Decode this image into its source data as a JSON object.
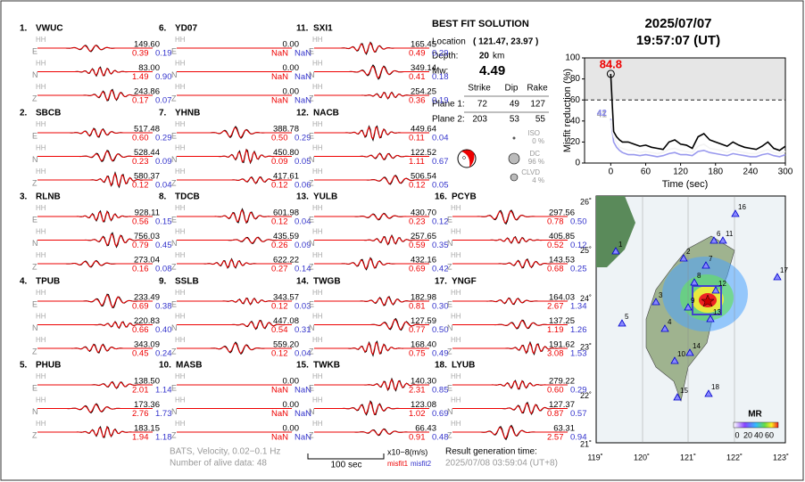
{
  "time": {
    "date": "2025/07/07",
    "clock": "19:57:07  (UT)"
  },
  "solution": {
    "title": "BEST FIT SOLUTION",
    "location_label": "Location",
    "location": "( 121.47, 23.97 )",
    "depth_label": "Depth:",
    "depth": "20",
    "depth_unit": "km",
    "mw_label": "Mw:",
    "mw": "4.49",
    "headers": [
      "Strike",
      "Dip",
      "Rake"
    ],
    "planes": [
      {
        "label": "Plane 1:",
        "values": [
          "72",
          "49",
          "127"
        ]
      },
      {
        "label": "Plane 2:",
        "values": [
          "203",
          "53",
          "55"
        ]
      }
    ],
    "components": [
      {
        "name": "ISO",
        "percent": "0 %"
      },
      {
        "name": "DC",
        "percent": "96 %"
      },
      {
        "name": "CLVD",
        "percent": "4 %"
      }
    ]
  },
  "stations": [
    {
      "number": "1.",
      "name": "VWUC",
      "channel": "HH",
      "traces": [
        {
          "comp": "E",
          "amp": "149.60",
          "misfit1": "0.39",
          "misfit2": "0.19"
        },
        {
          "comp": "N",
          "amp": "83.00",
          "misfit1": "1.49",
          "misfit2": "0.90"
        },
        {
          "comp": "Z",
          "amp": "243.86",
          "misfit1": "0.17",
          "misfit2": "0.07"
        }
      ]
    },
    {
      "number": "2.",
      "name": "SBCB",
      "channel": "HH",
      "traces": [
        {
          "comp": "E",
          "amp": "517.48",
          "misfit1": "0.60",
          "misfit2": "0.29"
        },
        {
          "comp": "N",
          "amp": "528.44",
          "misfit1": "0.23",
          "misfit2": "0.09"
        },
        {
          "comp": "Z",
          "amp": "580.37",
          "misfit1": "0.12",
          "misfit2": "0.04"
        }
      ]
    },
    {
      "number": "3.",
      "name": "RLNB",
      "channel": "HH",
      "traces": [
        {
          "comp": "E",
          "amp": "928.11",
          "misfit1": "0.56",
          "misfit2": "0.15"
        },
        {
          "comp": "N",
          "amp": "756.03",
          "misfit1": "0.79",
          "misfit2": "0.45"
        },
        {
          "comp": "Z",
          "amp": "273.04",
          "misfit1": "0.16",
          "misfit2": "0.08"
        }
      ]
    },
    {
      "number": "4.",
      "name": "TPUB",
      "channel": "HH",
      "traces": [
        {
          "comp": "E",
          "amp": "233.49",
          "misfit1": "0.69",
          "misfit2": "0.38"
        },
        {
          "comp": "N",
          "amp": "220.83",
          "misfit1": "0.66",
          "misfit2": "0.40"
        },
        {
          "comp": "Z",
          "amp": "343.09",
          "misfit1": "0.45",
          "misfit2": "0.24"
        }
      ]
    },
    {
      "number": "5.",
      "name": "PHUB",
      "channel": "HH",
      "traces": [
        {
          "comp": "E",
          "amp": "138.50",
          "misfit1": "2.01",
          "misfit2": "1.14"
        },
        {
          "comp": "N",
          "amp": "173.36",
          "misfit1": "2.76",
          "misfit2": "1.73"
        },
        {
          "comp": "Z",
          "amp": "183.15",
          "misfit1": "1.94",
          "misfit2": "1.18"
        }
      ]
    },
    {
      "number": "6.",
      "name": "YD07",
      "channel": "HH",
      "traces": [
        {
          "comp": "E",
          "amp": "0.00",
          "misfit1": "NaN",
          "misfit2": "NaN"
        },
        {
          "comp": "N",
          "amp": "0.00",
          "misfit1": "NaN",
          "misfit2": "NaN"
        },
        {
          "comp": "Z",
          "amp": "0.00",
          "misfit1": "NaN",
          "misfit2": "NaN"
        }
      ]
    },
    {
      "number": "7.",
      "name": "YHNB",
      "channel": "HH",
      "traces": [
        {
          "comp": "E",
          "amp": "388.78",
          "misfit1": "0.50",
          "misfit2": "0.29"
        },
        {
          "comp": "N",
          "amp": "450.80",
          "misfit1": "0.09",
          "misfit2": "0.05"
        },
        {
          "comp": "Z",
          "amp": "417.61",
          "misfit1": "0.12",
          "misfit2": "0.06"
        }
      ]
    },
    {
      "number": "8.",
      "name": "TDCB",
      "channel": "HH",
      "traces": [
        {
          "comp": "E",
          "amp": "601.98",
          "misfit1": "0.12",
          "misfit2": "0.04"
        },
        {
          "comp": "N",
          "amp": "435.59",
          "misfit1": "0.26",
          "misfit2": "0.09"
        },
        {
          "comp": "Z",
          "amp": "622.22",
          "misfit1": "0.27",
          "misfit2": "0.14"
        }
      ]
    },
    {
      "number": "9.",
      "name": "SSLB",
      "channel": "HH",
      "traces": [
        {
          "comp": "E",
          "amp": "343.57",
          "misfit1": "0.12",
          "misfit2": "0.03"
        },
        {
          "comp": "N",
          "amp": "447.08",
          "misfit1": "0.54",
          "misfit2": "0.31"
        },
        {
          "comp": "Z",
          "amp": "559.20",
          "misfit1": "0.12",
          "misfit2": "0.04"
        }
      ]
    },
    {
      "number": "10.",
      "name": "MASB",
      "channel": "HH",
      "traces": [
        {
          "comp": "E",
          "amp": "0.00",
          "misfit1": "NaN",
          "misfit2": "NaN"
        },
        {
          "comp": "N",
          "amp": "0.00",
          "misfit1": "NaN",
          "misfit2": "NaN"
        },
        {
          "comp": "Z",
          "amp": "0.00",
          "misfit1": "NaN",
          "misfit2": "NaN"
        }
      ]
    },
    {
      "number": "11.",
      "name": "SXI1",
      "channel": "HH",
      "traces": [
        {
          "comp": "E",
          "amp": "165.45",
          "misfit1": "0.49",
          "misfit2": "0.29"
        },
        {
          "comp": "N",
          "amp": "349.14",
          "misfit1": "0.41",
          "misfit2": "0.18"
        },
        {
          "comp": "Z",
          "amp": "254.25",
          "misfit1": "0.36",
          "misfit2": "0.19"
        }
      ]
    },
    {
      "number": "12.",
      "name": "NACB",
      "channel": "HH",
      "traces": [
        {
          "comp": "E",
          "amp": "449.64",
          "misfit1": "0.11",
          "misfit2": "0.04"
        },
        {
          "comp": "N",
          "amp": "122.52",
          "misfit1": "1.11",
          "misfit2": "0.67"
        },
        {
          "comp": "Z",
          "amp": "506.54",
          "misfit1": "0.12",
          "misfit2": "0.05"
        }
      ]
    },
    {
      "number": "13.",
      "name": "YULB",
      "channel": "HH",
      "traces": [
        {
          "comp": "E",
          "amp": "430.70",
          "misfit1": "0.23",
          "misfit2": "0.12"
        },
        {
          "comp": "N",
          "amp": "257.65",
          "misfit1": "0.59",
          "misfit2": "0.35"
        },
        {
          "comp": "Z",
          "amp": "432.16",
          "misfit1": "0.69",
          "misfit2": "0.42"
        }
      ]
    },
    {
      "number": "14.",
      "name": "TWGB",
      "channel": "HH",
      "traces": [
        {
          "comp": "E",
          "amp": "182.98",
          "misfit1": "0.81",
          "misfit2": "0.30"
        },
        {
          "comp": "N",
          "amp": "127.59",
          "misfit1": "0.77",
          "misfit2": "0.50"
        },
        {
          "comp": "Z",
          "amp": "168.40",
          "misfit1": "0.75",
          "misfit2": "0.49"
        }
      ]
    },
    {
      "number": "15.",
      "name": "TWKB",
      "channel": "HH",
      "traces": [
        {
          "comp": "E",
          "amp": "140.30",
          "misfit1": "2.31",
          "misfit2": "0.85"
        },
        {
          "comp": "N",
          "amp": "123.08",
          "misfit1": "1.02",
          "misfit2": "0.69"
        },
        {
          "comp": "Z",
          "amp": "66.43",
          "misfit1": "0.91",
          "misfit2": "0.48"
        }
      ]
    },
    {
      "number": "16.",
      "name": "PCYB",
      "channel": "HH",
      "traces": [
        {
          "comp": "E",
          "amp": "297.56",
          "misfit1": "0.78",
          "misfit2": "0.50"
        },
        {
          "comp": "N",
          "amp": "405.85",
          "misfit1": "0.52",
          "misfit2": "0.12"
        },
        {
          "comp": "Z",
          "amp": "143.53",
          "misfit1": "0.68",
          "misfit2": "0.25"
        }
      ]
    },
    {
      "number": "17.",
      "name": "YNGF",
      "channel": "HH",
      "traces": [
        {
          "comp": "E",
          "amp": "164.03",
          "misfit1": "2.67",
          "misfit2": "1.34"
        },
        {
          "comp": "N",
          "amp": "137.25",
          "misfit1": "1.19",
          "misfit2": "1.26"
        },
        {
          "comp": "Z",
          "amp": "191.62",
          "misfit1": "3.08",
          "misfit2": "1.53"
        }
      ]
    },
    {
      "number": "18.",
      "name": "LYUB",
      "channel": "HH",
      "traces": [
        {
          "comp": "E",
          "amp": "279.22",
          "misfit1": "0.60",
          "misfit2": "0.29"
        },
        {
          "comp": "N",
          "amp": "127.37",
          "misfit1": "0.87",
          "misfit2": "0.57"
        },
        {
          "comp": "Z",
          "amp": "63.31",
          "misfit1": "2.57",
          "misfit2": "0.94"
        }
      ]
    }
  ],
  "footer": {
    "filter": "BATS, Velocity, 0.02−0.1 Hz",
    "alive": "Number of alive data: 48",
    "scale": "100 sec",
    "units": "x10−8(m/s)",
    "misfit1": "misfit1",
    "misfit2": "misfit2",
    "result_label": "Result generation time:",
    "result_time": "2025/07/08 03:59:04 (UT+8)"
  },
  "map": {
    "lat_ticks": [
      "26˚",
      "25˚",
      "24˚",
      "23˚",
      "22˚",
      "21˚"
    ],
    "lon_ticks": [
      "119˚",
      "120˚",
      "121˚",
      "122˚",
      "123˚"
    ],
    "station_labels": [
      "1",
      "2",
      "3",
      "4",
      "5",
      "6",
      "7",
      "8",
      "9",
      "10",
      "11",
      "12",
      "13",
      "14",
      "15",
      "16",
      "17",
      "18"
    ],
    "colorbar_title": "MR",
    "colorbar_ticks": [
      "0",
      "20",
      "40",
      "60"
    ]
  },
  "chart_data": {
    "type": "line",
    "xlabel": "Time (sec)",
    "ylabel": "Misfit reduction (%)",
    "x": [
      0,
      5,
      10,
      15,
      20,
      30,
      40,
      50,
      60,
      70,
      80,
      90,
      100,
      110,
      120,
      130,
      140,
      150,
      160,
      170,
      180,
      190,
      200,
      210,
      220,
      230,
      240,
      250,
      260,
      270,
      280,
      290,
      300
    ],
    "series": [
      {
        "color": "#000000",
        "values": [
          84.8,
          30,
          25,
          22,
          20,
          20,
          18,
          16,
          17,
          15,
          14,
          13,
          20,
          22,
          18,
          17,
          14,
          25,
          28,
          22,
          20,
          18,
          16,
          20,
          17,
          15,
          14,
          13,
          16,
          20,
          14,
          12,
          16
        ],
        "value_labels": [
          "84.8",
          null,
          null,
          null,
          null,
          null,
          null,
          null,
          null,
          null,
          null,
          null,
          null,
          null,
          null,
          null,
          null,
          null,
          null,
          null,
          null,
          null,
          null,
          null,
          null,
          null,
          null,
          null,
          null,
          null,
          null,
          null,
          null
        ]
      },
      {
        "color": "#f4f4f4",
        "values": [
          41,
          25,
          20,
          15,
          14,
          12,
          12,
          10,
          11,
          10,
          9,
          10,
          13,
          14,
          12,
          11,
          10,
          16,
          18,
          14,
          13,
          12,
          10,
          13,
          11,
          10,
          9,
          9,
          11,
          13,
          10,
          9,
          11
        ],
        "value_labels": [
          "41",
          null,
          null,
          null,
          null,
          null,
          null,
          null,
          null,
          null,
          null,
          null,
          null,
          null,
          null,
          null,
          null,
          null,
          null,
          null,
          null,
          null,
          null,
          null,
          null,
          null,
          null,
          null,
          null,
          null,
          null,
          null,
          null
        ]
      },
      {
        "color": "#9999ee",
        "values": [
          42,
          20,
          15,
          12,
          10,
          8,
          8,
          7,
          8,
          7,
          6,
          7,
          9,
          10,
          8,
          8,
          7,
          11,
          12,
          10,
          9,
          8,
          7,
          9,
          8,
          7,
          6,
          6,
          8,
          9,
          7,
          6,
          8
        ],
        "value_labels": [
          "42",
          null,
          null,
          null,
          null,
          null,
          null,
          null,
          null,
          null,
          null,
          null,
          null,
          null,
          null,
          null,
          null,
          null,
          null,
          null,
          null,
          null,
          null,
          null,
          null,
          null,
          null,
          null,
          null,
          null,
          null,
          null,
          null
        ]
      }
    ],
    "xlim": [
      -45,
      300
    ],
    "xticks": [
      0,
      60,
      120,
      180,
      240,
      300
    ],
    "ylim": [
      0,
      100
    ],
    "yticks": [
      0,
      20,
      40,
      60,
      80,
      100
    ],
    "threshold": 60
  }
}
